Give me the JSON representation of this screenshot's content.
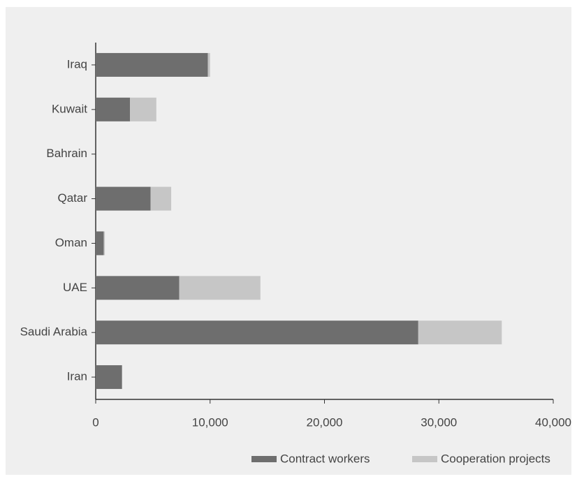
{
  "chart_data": {
    "type": "stacked-bar-horizontal",
    "categories": [
      "Iraq",
      "Kuwait",
      "Bahrain",
      "Qatar",
      "Oman",
      "UAE",
      "Saudi Arabia",
      "Iran"
    ],
    "series": [
      {
        "name": "Contract workers",
        "color": "#6e6e6e",
        "values": [
          9800,
          3000,
          0,
          4800,
          700,
          7300,
          28200,
          2300
        ]
      },
      {
        "name": "Cooperation projects",
        "color": "#c6c6c6",
        "values": [
          200,
          2300,
          0,
          1800,
          100,
          7100,
          7300,
          0
        ]
      }
    ],
    "xlim": [
      0,
      40000
    ],
    "xticks": [
      0,
      {
        "value": 10000,
        "label": "10,000"
      },
      {
        "value": 20000,
        "label": "20,000"
      },
      {
        "value": 30000,
        "label": "30,000"
      },
      {
        "value": 40000,
        "label": "40,000"
      }
    ],
    "legend": "bottom-right"
  }
}
